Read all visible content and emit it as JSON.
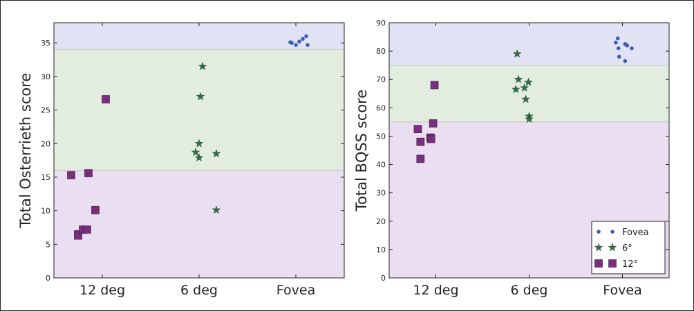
{
  "chart_data": [
    {
      "type": "scatter",
      "ylabel": "Total Osterrieth score",
      "ylim": [
        0,
        38
      ],
      "yticks": [
        0,
        5,
        10,
        15,
        20,
        25,
        30,
        35
      ],
      "categories": [
        "12 deg",
        "6 deg",
        "Fovea"
      ],
      "bands": [
        {
          "from": 0,
          "to": 16,
          "color": "#eadff0"
        },
        {
          "from": 16,
          "to": 34,
          "color": "#e2ecdf"
        },
        {
          "from": 34,
          "to": 38,
          "color": "#e1e3f4"
        }
      ],
      "series": [
        {
          "marker": "square",
          "color": "#7b2d7e",
          "category": "12 deg",
          "points": [
            [
              -0.45,
              15.3
            ],
            [
              -0.2,
              15.6
            ],
            [
              0.05,
              26.6
            ],
            [
              -0.35,
              6.5
            ],
            [
              -0.35,
              6.3
            ],
            [
              -0.28,
              7.2
            ],
            [
              -0.22,
              7.2
            ],
            [
              -0.1,
              10.1
            ]
          ]
        },
        {
          "marker": "star",
          "color": "#2f6e45",
          "category": "6 deg",
          "points": [
            [
              0.05,
              31.5
            ],
            [
              0.02,
              27.0
            ],
            [
              0.0,
              20.0
            ],
            [
              -0.05,
              18.7
            ],
            [
              0.0,
              17.9
            ],
            [
              0.25,
              18.5
            ],
            [
              0.25,
              10.1
            ]
          ]
        },
        {
          "marker": "dot",
          "color": "#3b5db5",
          "category": "Fovea",
          "points": [
            [
              -0.08,
              35.1
            ],
            [
              -0.06,
              35.0
            ],
            [
              0.0,
              34.7
            ],
            [
              0.05,
              35.2
            ],
            [
              0.1,
              35.6
            ],
            [
              0.15,
              36.0
            ],
            [
              0.17,
              34.7
            ]
          ]
        }
      ]
    },
    {
      "type": "scatter",
      "ylabel": "Total BQSS score",
      "ylim": [
        0,
        90
      ],
      "yticks": [
        0,
        10,
        20,
        30,
        40,
        50,
        60,
        70,
        80,
        90
      ],
      "categories": [
        "12 deg",
        "6 deg",
        "Fovea"
      ],
      "bands": [
        {
          "from": 0,
          "to": 55,
          "color": "#eadff0"
        },
        {
          "from": 55,
          "to": 75,
          "color": "#e2ecdf"
        },
        {
          "from": 75,
          "to": 90,
          "color": "#e1e3f4"
        }
      ],
      "series": [
        {
          "name": "12°",
          "marker": "square",
          "color": "#7b2d7e",
          "category": "12 deg",
          "points": [
            [
              -0.27,
              52.5
            ],
            [
              -0.23,
              48.0
            ],
            [
              -0.23,
              42.0
            ],
            [
              -0.08,
              49.5
            ],
            [
              -0.07,
              49.0
            ],
            [
              -0.04,
              54.5
            ],
            [
              -0.02,
              68.0
            ]
          ]
        },
        {
          "name": "6°",
          "marker": "star",
          "color": "#2f6e45",
          "category": "6 deg",
          "points": [
            [
              -0.18,
              79.0
            ],
            [
              -0.16,
              70.0
            ],
            [
              -0.2,
              66.5
            ],
            [
              -0.07,
              67.0
            ],
            [
              -0.05,
              63.0
            ],
            [
              -0.01,
              69.0
            ],
            [
              0.0,
              57.0
            ],
            [
              0.0,
              56.0
            ]
          ]
        },
        {
          "name": "Fovea",
          "marker": "dot",
          "color": "#3b5db5",
          "category": "Fovea",
          "points": [
            [
              -0.1,
              83.0
            ],
            [
              -0.07,
              84.5
            ],
            [
              -0.06,
              81.0
            ],
            [
              -0.05,
              78.0
            ],
            [
              0.04,
              76.5
            ],
            [
              0.04,
              82.5
            ],
            [
              0.07,
              82.0
            ],
            [
              0.14,
              81.0
            ]
          ]
        }
      ],
      "legend": {
        "position": "lower-right",
        "entries": [
          "Fovea",
          "6°",
          "12°"
        ]
      }
    }
  ]
}
